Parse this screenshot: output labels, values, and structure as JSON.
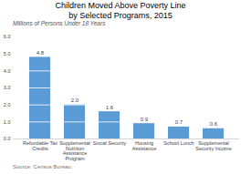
{
  "chart_data": {
    "type": "bar",
    "title": "Children Moved Above Poverty Line\nby Selected Programs, 2015",
    "subtitle": "Millions of Persons Under 18 Years",
    "source": "Source: Census Bureau.",
    "categories": [
      "Refundable Tax\nCredits",
      "Supplemental\nNutrition\nAssistance\nProgram",
      "Social Security",
      "Housing\nAssistance",
      "School Lunch",
      "Supplemental\nSecurity Income"
    ],
    "values": [
      4.8,
      2.0,
      1.6,
      0.9,
      0.7,
      0.6
    ],
    "value_labels": [
      "4.8",
      "2.0",
      "1.6",
      "0.9",
      "0.7",
      "0.6"
    ],
    "data_labels": true,
    "color": "#5b9bd5",
    "ylim": [
      0,
      6
    ],
    "yticks": [
      0,
      1,
      2,
      3,
      4,
      5,
      6
    ],
    "grid": true
  }
}
